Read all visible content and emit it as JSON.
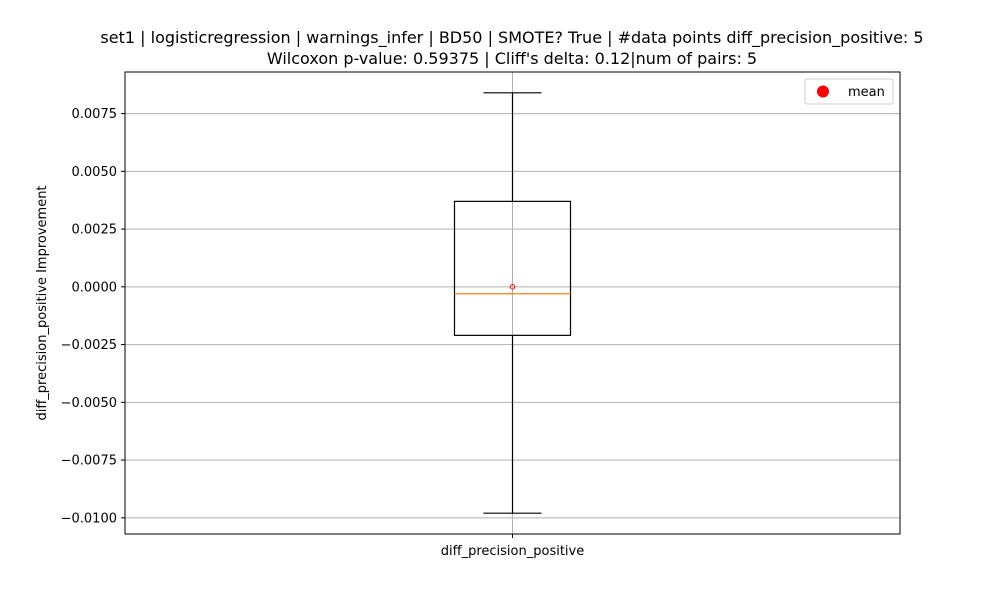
{
  "chart_data": {
    "type": "box",
    "title_line1": "set1 | logisticregression | warnings_infer | BD50 | SMOTE? True | #data points diff_precision_positive: 5",
    "title_line2": "Wilcoxon p-value: 0.59375 | Cliff's delta: 0.12|num of pairs: 5",
    "xlabel": "",
    "ylabel": "diff_precision_positive Improvement",
    "categories": [
      "diff_precision_positive"
    ],
    "ylim": [
      -0.0107,
      0.0093
    ],
    "yticks": [
      -0.01,
      -0.0075,
      -0.005,
      -0.0025,
      0.0,
      0.0025,
      0.005,
      0.0075
    ],
    "ytick_labels": [
      "−0.0100",
      "−0.0075",
      "−0.0050",
      "−0.0025",
      "0.0000",
      "0.0025",
      "0.0050",
      "0.0075"
    ],
    "box": {
      "whisker_low": -0.0098,
      "q1": -0.0021,
      "median": -0.0003,
      "q3": 0.0037,
      "whisker_high": 0.0084,
      "mean": 0.0
    },
    "legend": {
      "label": "mean",
      "location": "upper right"
    },
    "grid": true,
    "colors": {
      "median": "#ff7f0e",
      "mean": "#ff0000",
      "box": "#000000",
      "grid": "#b0b0b0"
    }
  }
}
